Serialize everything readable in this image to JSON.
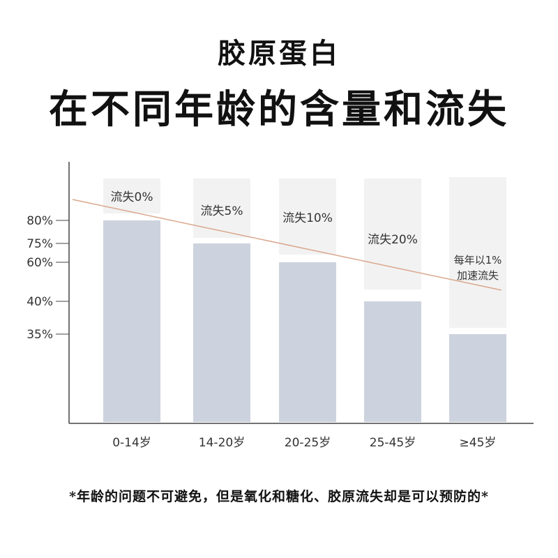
{
  "header": {
    "title_line1": "胶原蛋白",
    "title_line2": "在不同年龄的含量和流失"
  },
  "footnote": "*年龄的问题不可避免，但是氧化和糖化、胶原流失却是可以预防的*",
  "colors": {
    "bar": "#cdd3de",
    "bar_bg": "#f2f2f2",
    "trend": "#d9a78c",
    "axis": "#444444"
  },
  "chart_data": {
    "type": "bar",
    "categories": [
      "0-14岁",
      "14-20岁",
      "20-25岁",
      "25-45岁",
      "≥45岁"
    ],
    "values": [
      80,
      75,
      60,
      40,
      35
    ],
    "value_labels": [
      "80%",
      "75%",
      "60%",
      "40%",
      "35%"
    ],
    "loss_labels": [
      [
        "流失0%"
      ],
      [
        "流失5%"
      ],
      [
        "流失10%"
      ],
      [
        "流失20%"
      ],
      [
        "每年以1%",
        "加速流失"
      ]
    ],
    "ylim": [
      0,
      100
    ],
    "title": "",
    "xlabel": "",
    "ylabel": "",
    "grid": false,
    "trend_line": true
  }
}
